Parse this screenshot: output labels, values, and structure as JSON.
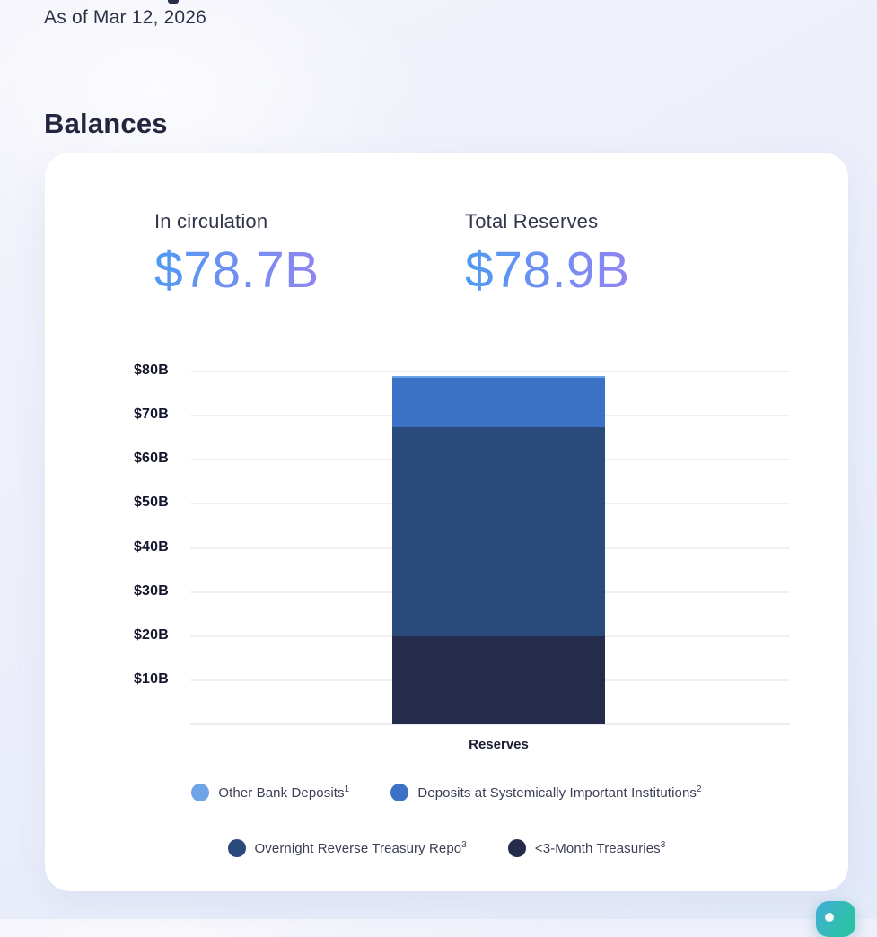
{
  "page": {
    "as_of": "As of Mar 12, 2026",
    "title": "Balances"
  },
  "stats": {
    "in_circulation": {
      "label": "In circulation",
      "value": "$78.7B"
    },
    "total_reserves": {
      "label": "Total Reserves",
      "value": "$78.9B"
    }
  },
  "colors": {
    "value_gradient_start": "#4E9AF1",
    "value_gradient_end": "#9184F2",
    "grid": "#EFEFF4",
    "card_background": "#FFFFFF",
    "chat_gradient_start": "#41ACD8",
    "chat_gradient_end": "#28C1A5"
  },
  "icons": {
    "chat_launcher": "chat-bubble-icon"
  },
  "chart_data": {
    "type": "bar",
    "stacked": true,
    "title": "",
    "categories": [
      "Reserves"
    ],
    "xlabel": "Reserves",
    "ylabel": "",
    "ylim": [
      0,
      80
    ],
    "grid": true,
    "legend_position": "bottom",
    "yticks": [
      {
        "label": "$80B",
        "value": 80
      },
      {
        "label": "$70B",
        "value": 70
      },
      {
        "label": "$60B",
        "value": 60
      },
      {
        "label": "$50B",
        "value": 50
      },
      {
        "label": "$40B",
        "value": 40
      },
      {
        "label": "$30B",
        "value": 30
      },
      {
        "label": "$20B",
        "value": 20
      },
      {
        "label": "$10B",
        "value": 10
      }
    ],
    "series": [
      {
        "name": "Other Bank Deposits",
        "sup": "1",
        "color": "#6FA3E8",
        "values": [
          0.3
        ]
      },
      {
        "name": "Deposits at Systemically Important Institutions",
        "sup": "2",
        "color": "#3B72C6",
        "values": [
          11.3
        ]
      },
      {
        "name": "Overnight Reverse Treasury Repo",
        "sup": "3",
        "color": "#2B4A7C",
        "values": [
          47.3
        ]
      },
      {
        "name": "<3-Month Treasuries",
        "sup": "3",
        "color": "#242B4B",
        "values": [
          20.0
        ]
      }
    ],
    "stack_order_top_to_bottom": [
      "Other Bank Deposits",
      "Deposits at Systemically Important Institutions",
      "Overnight Reverse Treasury Repo",
      "<3-Month Treasuries"
    ],
    "legend_rows": [
      [
        0,
        1
      ],
      [
        2,
        3
      ]
    ]
  }
}
